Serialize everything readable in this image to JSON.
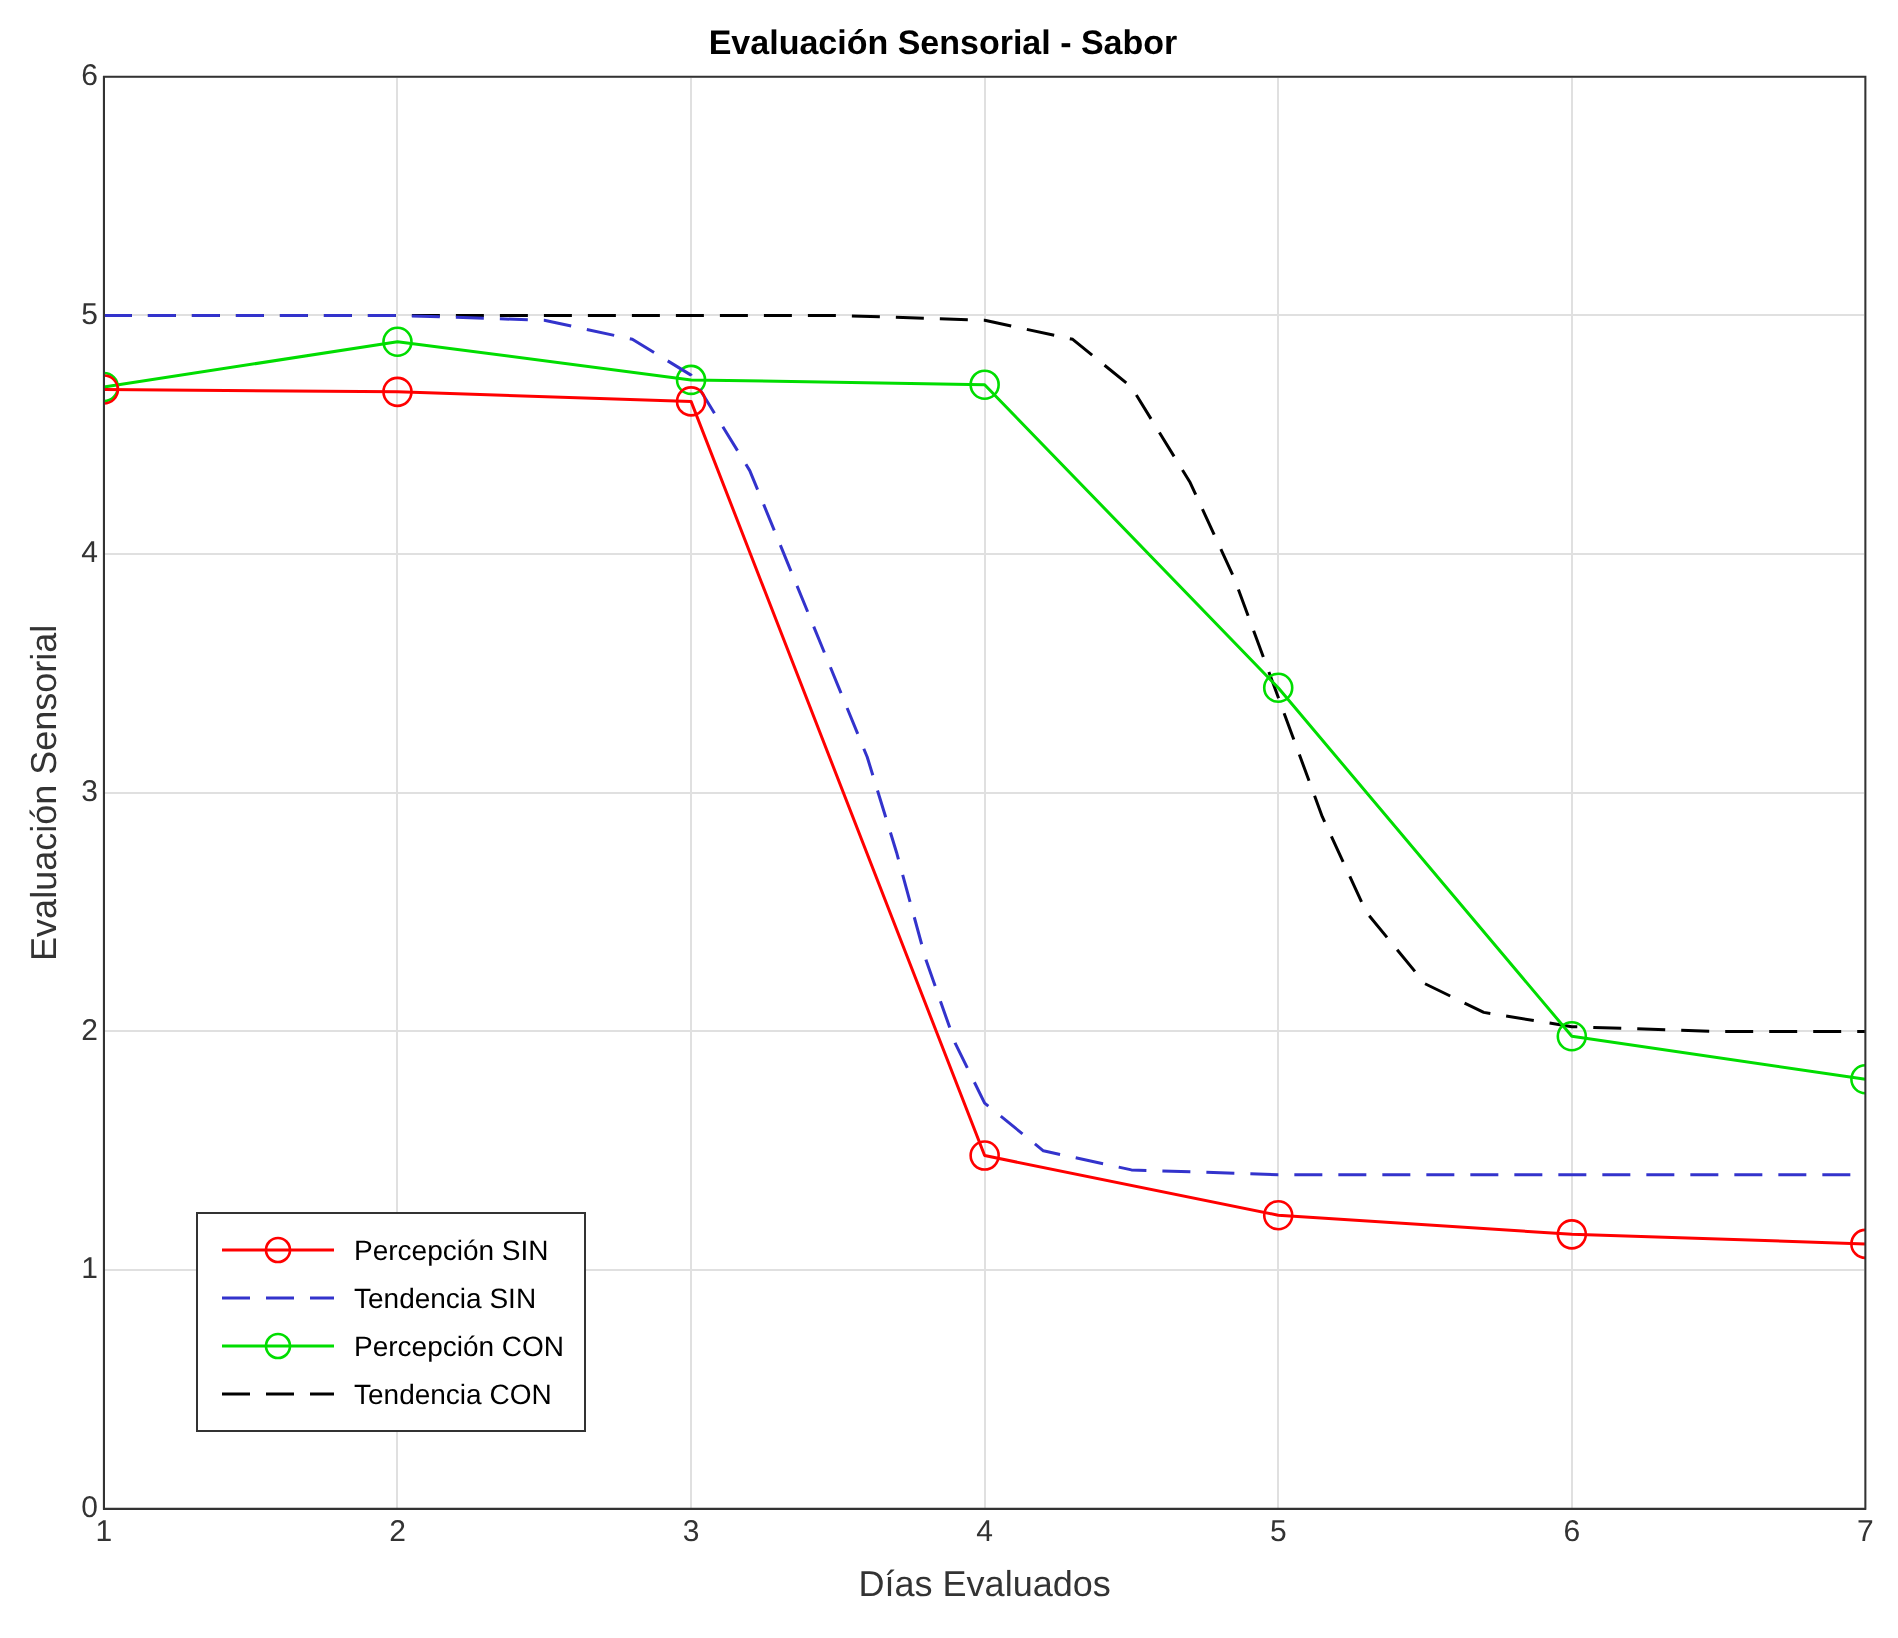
{
  "chart_data": {
    "type": "line",
    "title": "Evaluación Sensorial - Sabor",
    "xlabel": "Días Evaluados",
    "ylabel": "Evaluación Sensorial",
    "x": [
      1,
      2,
      3,
      4,
      5,
      6,
      7
    ],
    "xlim": [
      1,
      7
    ],
    "xticks": [
      1,
      2,
      3,
      4,
      5,
      6,
      7
    ],
    "ylim": [
      0,
      6
    ],
    "yticks": [
      0,
      1,
      2,
      3,
      4,
      5,
      6
    ],
    "grid": true,
    "legend": "bottom left",
    "series": [
      {
        "name": "Percepción SIN",
        "color": "#ff0000",
        "marker": "circle",
        "line_style": "solid",
        "values": [
          4.69,
          4.68,
          4.64,
          1.48,
          1.23,
          1.15,
          1.11
        ]
      },
      {
        "name": "Tendencia SIN",
        "color": "#3333cc",
        "marker": "none",
        "line_style": "dashed",
        "x": [
          1,
          2,
          2.5,
          2.8,
          3,
          3.2,
          3.4,
          3.5,
          3.6,
          3.7,
          3.8,
          3.9,
          4,
          4.2,
          4.5,
          5,
          6,
          7
        ],
        "values": [
          5,
          5,
          4.98,
          4.9,
          4.75,
          4.35,
          3.75,
          3.45,
          3.15,
          2.75,
          2.3,
          1.95,
          1.7,
          1.5,
          1.42,
          1.4,
          1.4,
          1.4
        ]
      },
      {
        "name": "Percepción CON",
        "color": "#00dd00",
        "marker": "circle",
        "line_style": "solid",
        "values": [
          4.7,
          4.89,
          4.73,
          4.71,
          3.44,
          1.98,
          1.8
        ]
      },
      {
        "name": "Tendencia CON",
        "color": "#000000",
        "marker": "none",
        "line_style": "dashed",
        "x": [
          1,
          2,
          3,
          3.5,
          4,
          4.3,
          4.5,
          4.7,
          4.85,
          5,
          5.15,
          5.3,
          5.5,
          5.7,
          6,
          6.5,
          7
        ],
        "values": [
          5,
          5,
          5,
          5,
          4.98,
          4.9,
          4.7,
          4.3,
          3.9,
          3.4,
          2.9,
          2.5,
          2.2,
          2.08,
          2.02,
          2,
          2
        ]
      }
    ]
  }
}
